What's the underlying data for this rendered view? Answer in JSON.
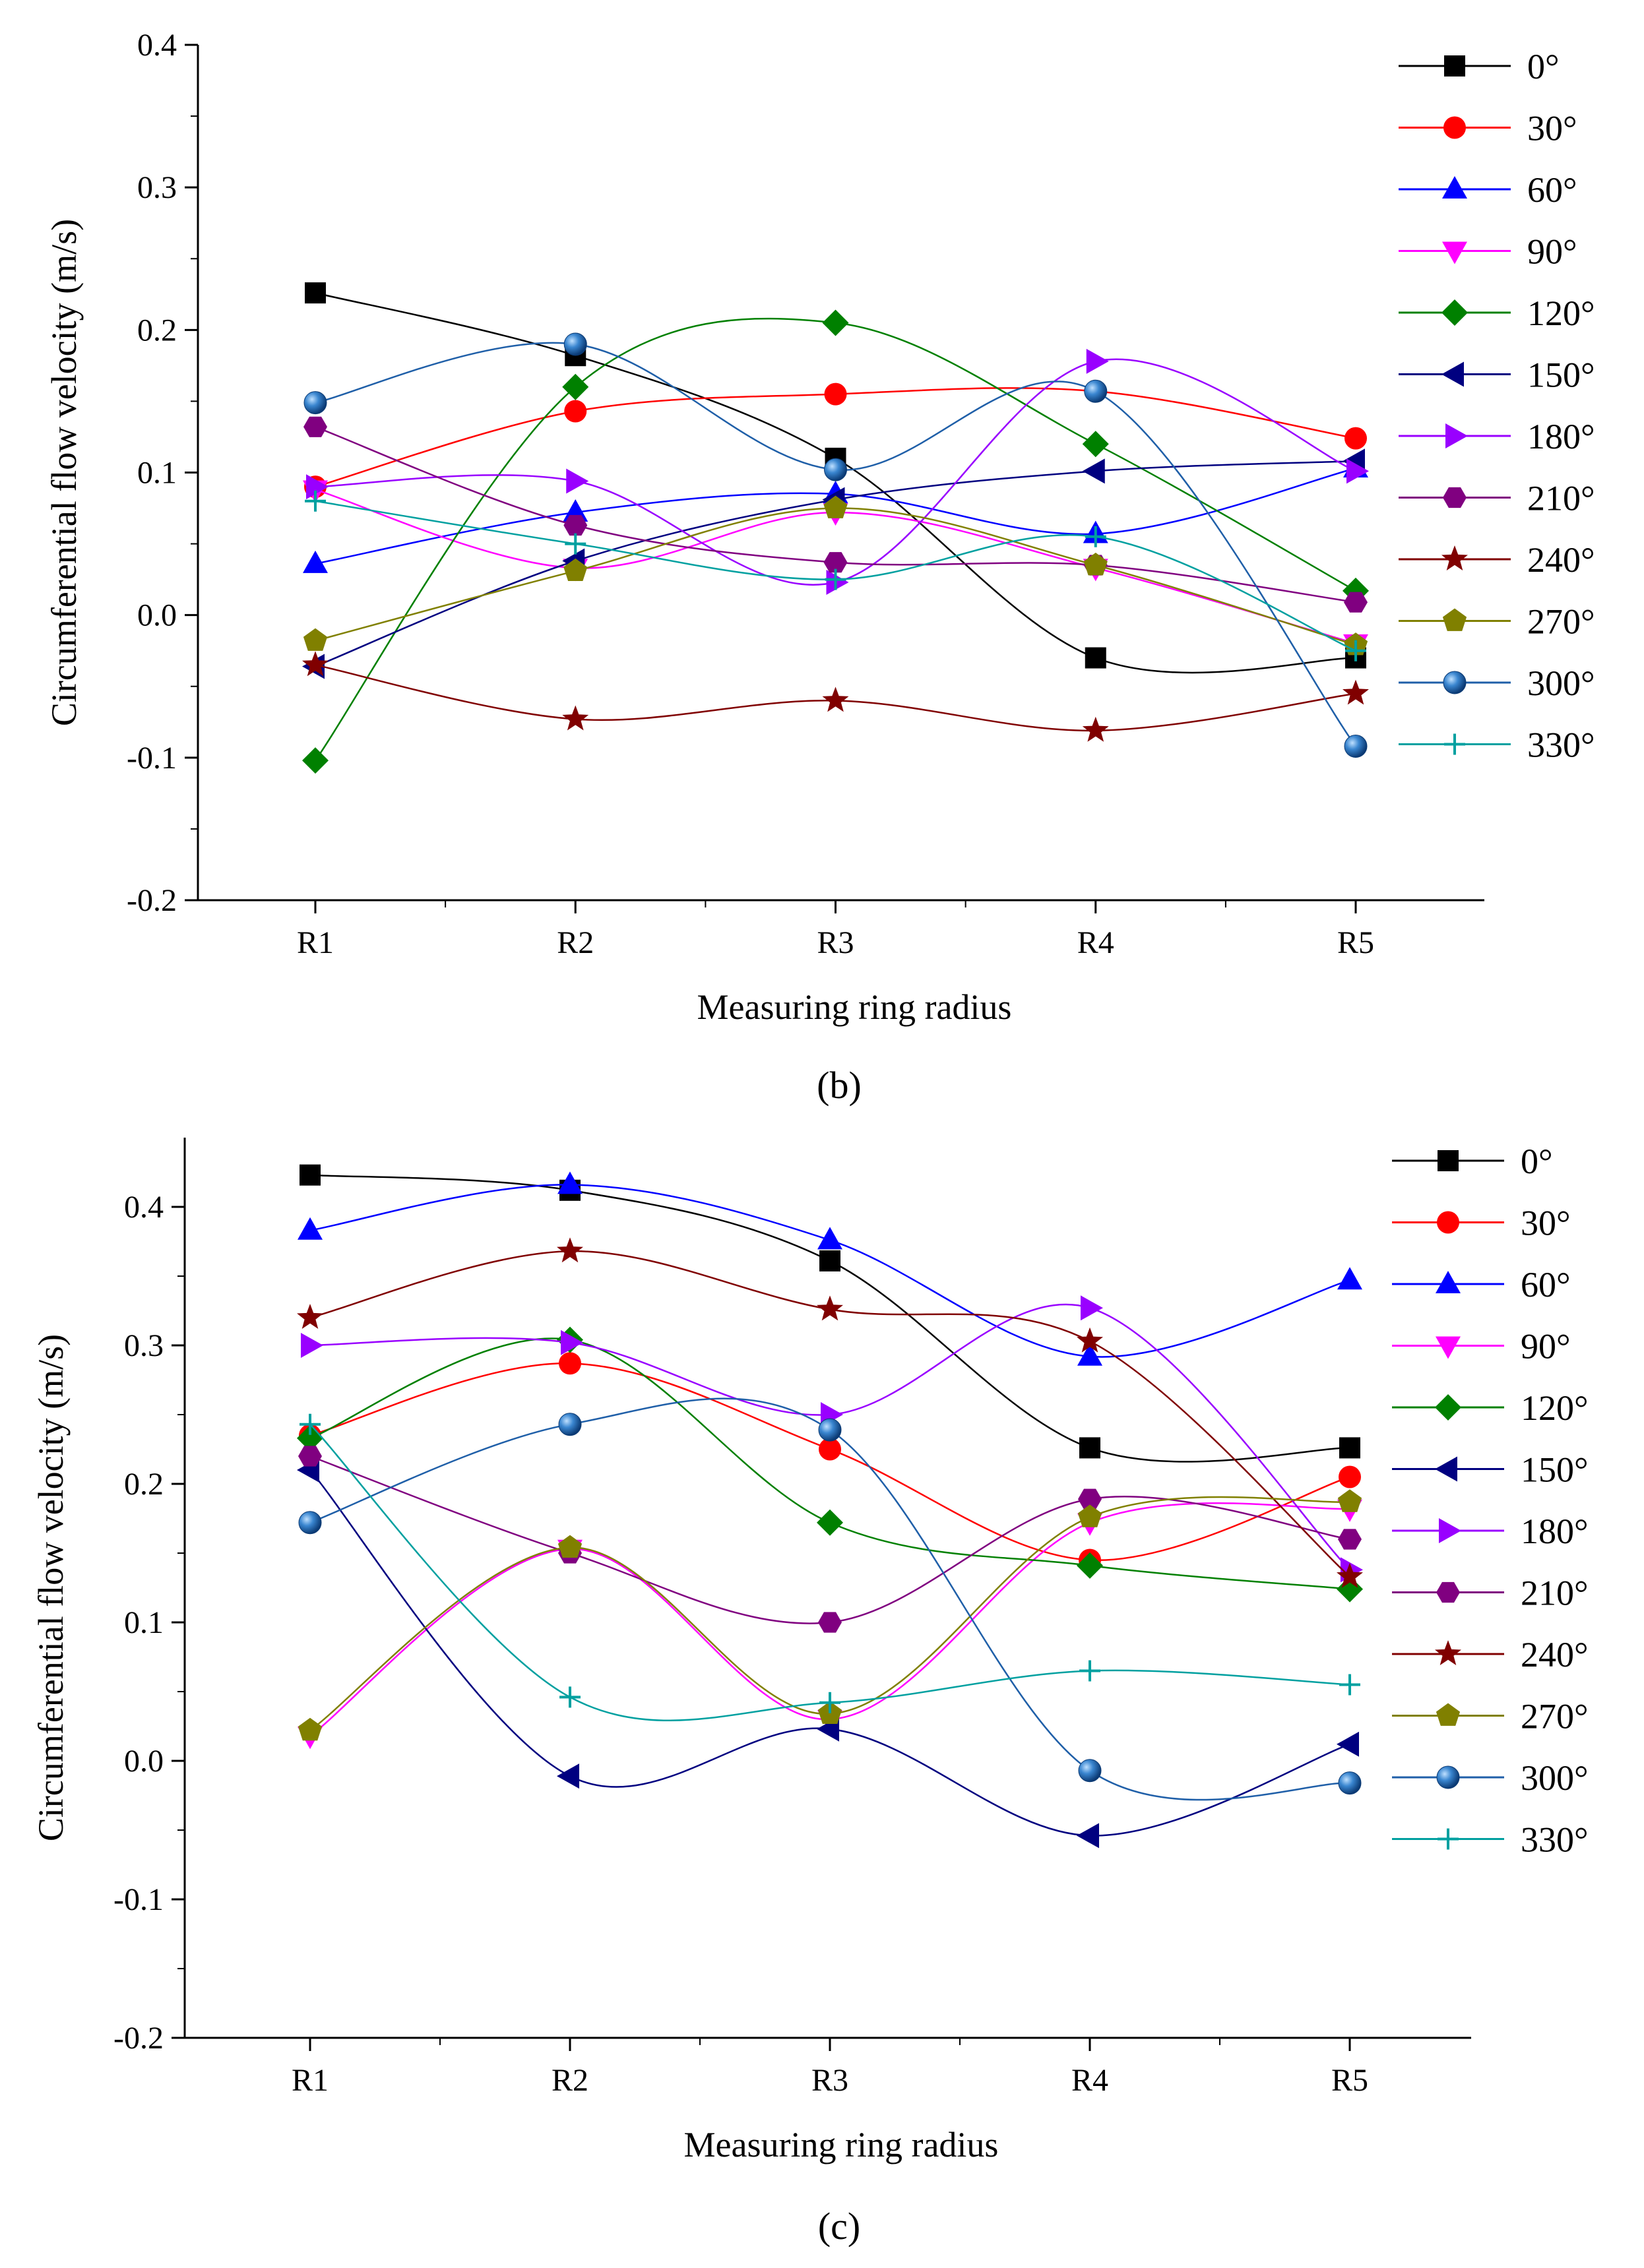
{
  "chart_data": [
    {
      "type": "line",
      "panel": "b",
      "caption": "(b)",
      "xlabel": "Measuring ring radius",
      "ylabel": "Circumferential flow velocity (m/s)",
      "categories": [
        "R1",
        "R2",
        "R3",
        "R4",
        "R5"
      ],
      "ylim": [
        -0.2,
        0.4
      ],
      "yticks": [
        -0.2,
        -0.1,
        0.0,
        0.1,
        0.2,
        0.3,
        0.4
      ],
      "ytick_labels": [
        "-0.2",
        "-0.1",
        "0.0",
        "0.1",
        "0.2",
        "0.3",
        "0.4"
      ],
      "legend_position": "top-right",
      "series": [
        {
          "name": "0°",
          "values": [
            0.226,
            0.182,
            0.11,
            -0.03,
            -0.03
          ]
        },
        {
          "name": "30°",
          "values": [
            0.09,
            0.143,
            0.155,
            0.157,
            0.124
          ]
        },
        {
          "name": "60°",
          "values": [
            0.036,
            0.072,
            0.085,
            0.057,
            0.103
          ]
        },
        {
          "name": "90°",
          "values": [
            0.088,
            0.033,
            0.072,
            0.033,
            -0.02
          ]
        },
        {
          "name": "120°",
          "values": [
            -0.102,
            0.16,
            0.205,
            0.12,
            0.017
          ]
        },
        {
          "name": "150°",
          "values": [
            -0.036,
            0.038,
            0.081,
            0.101,
            0.108
          ]
        },
        {
          "name": "180°",
          "values": [
            0.09,
            0.094,
            0.023,
            0.178,
            0.101
          ]
        },
        {
          "name": "210°",
          "values": [
            0.132,
            0.063,
            0.037,
            0.035,
            0.009
          ]
        },
        {
          "name": "240°",
          "values": [
            -0.035,
            -0.073,
            -0.06,
            -0.081,
            -0.055
          ]
        },
        {
          "name": "270°",
          "values": [
            -0.018,
            0.031,
            0.075,
            0.035,
            -0.021
          ]
        },
        {
          "name": "300°",
          "values": [
            0.149,
            0.19,
            0.102,
            0.157,
            -0.092
          ]
        },
        {
          "name": "330°",
          "values": [
            0.08,
            0.05,
            0.025,
            0.055,
            -0.025
          ]
        }
      ]
    },
    {
      "type": "line",
      "panel": "c",
      "caption": "(c)",
      "xlabel": "Measuring ring radius",
      "ylabel": "Circumferential flow velocity (m/s)",
      "categories": [
        "R1",
        "R2",
        "R3",
        "R4",
        "R5"
      ],
      "ylim": [
        -0.2,
        0.45
      ],
      "yticks": [
        -0.2,
        -0.1,
        0.0,
        0.1,
        0.2,
        0.3,
        0.4
      ],
      "ytick_labels": [
        "-0.2",
        "-0.1",
        "0.0",
        "0.1",
        "0.2",
        "0.3",
        "0.4"
      ],
      "legend_position": "top-right",
      "series": [
        {
          "name": "0°",
          "values": [
            0.423,
            0.412,
            0.361,
            0.226,
            0.226
          ]
        },
        {
          "name": "30°",
          "values": [
            0.235,
            0.287,
            0.225,
            0.145,
            0.205
          ]
        },
        {
          "name": "60°",
          "values": [
            0.383,
            0.416,
            0.376,
            0.292,
            0.347
          ]
        },
        {
          "name": "90°",
          "values": [
            0.018,
            0.153,
            0.03,
            0.172,
            0.182
          ]
        },
        {
          "name": "120°",
          "values": [
            0.233,
            0.304,
            0.172,
            0.141,
            0.124
          ]
        },
        {
          "name": "150°",
          "values": [
            0.21,
            -0.011,
            0.023,
            -0.054,
            0.012
          ]
        },
        {
          "name": "180°",
          "values": [
            0.3,
            0.302,
            0.25,
            0.327,
            0.138
          ]
        },
        {
          "name": "210°",
          "values": [
            0.22,
            0.15,
            0.1,
            0.189,
            0.16
          ]
        },
        {
          "name": "240°",
          "values": [
            0.32,
            0.368,
            0.326,
            0.303,
            0.133
          ]
        },
        {
          "name": "270°",
          "values": [
            0.022,
            0.154,
            0.034,
            0.176,
            0.187
          ]
        },
        {
          "name": "300°",
          "values": [
            0.172,
            0.243,
            0.239,
            -0.007,
            -0.016
          ]
        },
        {
          "name": "330°",
          "values": [
            0.243,
            0.046,
            0.042,
            0.065,
            0.055
          ]
        }
      ]
    }
  ],
  "series_styles": [
    {
      "color": "#000000",
      "marker": "square"
    },
    {
      "color": "#ff0000",
      "marker": "circle"
    },
    {
      "color": "#0000ff",
      "marker": "triangle-up"
    },
    {
      "color": "#ff00ff",
      "marker": "triangle-down"
    },
    {
      "color": "#008000",
      "marker": "diamond"
    },
    {
      "color": "#000080",
      "marker": "triangle-left"
    },
    {
      "color": "#9900ff",
      "marker": "triangle-right"
    },
    {
      "color": "#800080",
      "marker": "hexagon"
    },
    {
      "color": "#800000",
      "marker": "star"
    },
    {
      "color": "#808000",
      "marker": "pentagon"
    },
    {
      "color": "#1f5fa8",
      "marker": "sphere"
    },
    {
      "color": "#00a0a0",
      "marker": "plus"
    }
  ]
}
